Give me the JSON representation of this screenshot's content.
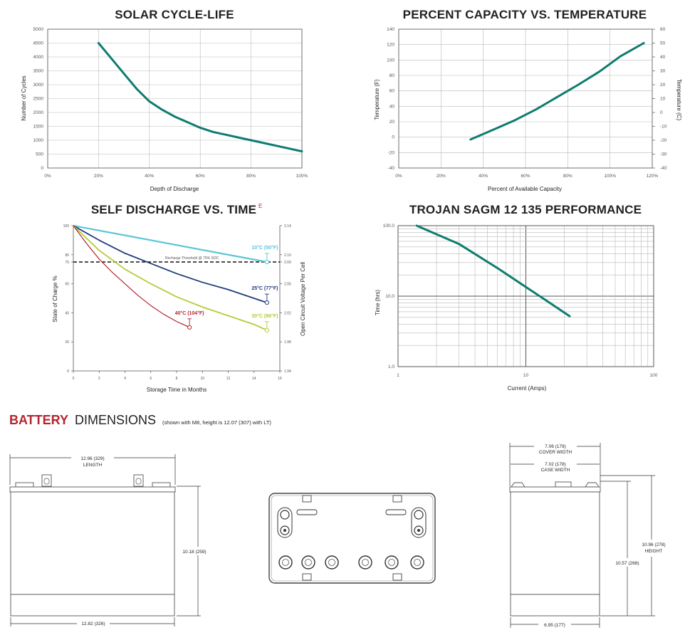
{
  "colors": {
    "teal": "#0e7c6f",
    "red": "#b3262f",
    "cyan": "#5bc6d6",
    "navy": "#1f3d7a",
    "lime": "#b5cc38"
  },
  "chart_data": [
    {
      "type": "line",
      "title": "SOLAR CYCLE-LIFE",
      "xlabel": "Depth of Discharge",
      "ylabel": "Number of Cycles",
      "xlim": [
        0,
        100
      ],
      "ylim": [
        0,
        5000
      ],
      "xticks": [
        "0%",
        "20%",
        "40%",
        "60%",
        "80%",
        "100%"
      ],
      "yticks": [
        "0",
        "500",
        "1000",
        "1500",
        "2000",
        "2500",
        "3000",
        "3500",
        "4000",
        "4500",
        "5000"
      ],
      "grid": true,
      "series": [
        {
          "x": [
            20,
            25,
            30,
            35,
            40,
            45,
            50,
            55,
            60,
            65,
            70,
            75,
            80,
            85,
            90,
            95,
            100
          ],
          "y": [
            4500,
            3950,
            3400,
            2850,
            2400,
            2100,
            1850,
            1650,
            1450,
            1300,
            1200,
            1100,
            1000,
            900,
            800,
            700,
            600
          ]
        }
      ]
    },
    {
      "type": "line",
      "title": "PERCENT CAPACITY VS. TEMPERATURE",
      "xlabel": "Percent of Available Capacity",
      "ylabel": "Temperature (F)",
      "ylabel_right": "Temperature (C)",
      "xlim": [
        0,
        120
      ],
      "ylim": [
        -40,
        140
      ],
      "ylim_right": [
        -40,
        60
      ],
      "xticks": [
        "0%",
        "20%",
        "40%",
        "60%",
        "80%",
        "100%",
        "120%"
      ],
      "yticks": [
        "-40",
        "-20",
        "0",
        "20",
        "40",
        "60",
        "80",
        "100",
        "120",
        "140"
      ],
      "yticks_right": [
        "-40",
        "-30",
        "-20",
        "-10",
        "0",
        "10",
        "20",
        "30",
        "40",
        "50",
        "60"
      ],
      "grid": true,
      "series": [
        {
          "x": [
            34,
            45,
            55,
            65,
            75,
            85,
            95,
            105,
            116
          ],
          "y": [
            -3,
            10,
            22,
            36,
            52,
            68,
            85,
            105,
            122
          ]
        }
      ]
    },
    {
      "type": "line",
      "title": "SELF DISCHARGE VS. TIME",
      "title_superscript": "E",
      "xlabel": "Storage Time in Months",
      "ylabel": "State of Charge %",
      "ylabel_right": "Open Circuit Voltage Per Cell",
      "xlim": [
        0,
        16
      ],
      "ylim": [
        0,
        100
      ],
      "xticks": [
        "0",
        "2",
        "4",
        "6",
        "8",
        "10",
        "12",
        "14",
        "16"
      ],
      "yticks": [
        "0",
        "20",
        "40",
        "60",
        "75",
        "80",
        "100"
      ],
      "yticks_right": [
        "1.94",
        "1.98",
        "2.02",
        "2.06",
        "2.09",
        "2.10",
        "2.14"
      ],
      "threshold": {
        "y": 75,
        "label": "Recharge Threshold @ 75% SOC"
      },
      "grid": false,
      "series": [
        {
          "name": "10°C (50°F)",
          "x": [
            0,
            15
          ],
          "y": [
            100,
            75
          ]
        },
        {
          "name": "25°C (77°F)",
          "x": [
            0,
            2,
            4,
            6,
            8,
            10,
            12,
            14,
            15
          ],
          "y": [
            100,
            90,
            81,
            74,
            67,
            61,
            56,
            50,
            47
          ]
        },
        {
          "name": "30°C (86°F)",
          "x": [
            0,
            2,
            4,
            6,
            8,
            10,
            12,
            14,
            15
          ],
          "y": [
            100,
            83,
            70,
            60,
            51,
            44,
            38,
            32,
            28
          ]
        },
        {
          "name": "40°C (104°F)",
          "x": [
            0,
            1,
            2,
            3,
            4,
            5,
            6,
            7,
            8,
            9
          ],
          "y": [
            100,
            88,
            77,
            68,
            60,
            52,
            45,
            39,
            34,
            30
          ]
        }
      ]
    },
    {
      "type": "line",
      "title": "TROJAN SAGM 12 135 PERFORMANCE",
      "xlabel": "Current (Amps)",
      "ylabel": "Time (hrs)",
      "xscale": "log",
      "yscale": "log",
      "xlim": [
        1,
        100
      ],
      "ylim": [
        1,
        100
      ],
      "xticks": [
        "1",
        "10",
        "100"
      ],
      "yticks": [
        "1.0",
        "10.0",
        "100.0"
      ],
      "grid": true,
      "series": [
        {
          "x": [
            1.4,
            3,
            6,
            10,
            14,
            22
          ],
          "y": [
            100,
            55,
            25,
            13.5,
            9,
            5.2
          ]
        }
      ]
    }
  ],
  "dimensions": {
    "heading_strong": "BATTERY",
    "heading_rest": "DIMENSIONS",
    "note": "(shown with M8, height is 12.07 (307) with LT)",
    "length_top": "12.96 (329)",
    "length_top_label": "LENGTH",
    "height_side": "10.18 (259)",
    "length_bottom": "12.82 (326)",
    "cover_width": "7.06 (179)",
    "cover_width_label": "COVER WIDTH",
    "case_width": "7.02 (178)",
    "case_width_label": "CASE WIDTH",
    "height_total": "10.96 (278)",
    "height_total_label": "HEIGHT",
    "height_case": "10.57 (268)",
    "width_bottom": "6.95 (177)"
  }
}
